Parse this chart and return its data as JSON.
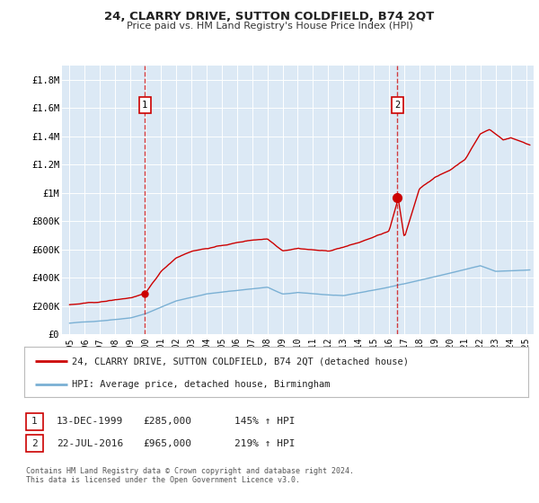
{
  "title": "24, CLARRY DRIVE, SUTTON COLDFIELD, B74 2QT",
  "subtitle": "Price paid vs. HM Land Registry's House Price Index (HPI)",
  "xlim": [
    1994.5,
    2025.5
  ],
  "ylim": [
    0,
    1900000
  ],
  "yticks": [
    0,
    200000,
    400000,
    600000,
    800000,
    1000000,
    1200000,
    1400000,
    1600000,
    1800000
  ],
  "ytick_labels": [
    "£0",
    "£200K",
    "£400K",
    "£600K",
    "£800K",
    "£1M",
    "£1.2M",
    "£1.4M",
    "£1.6M",
    "£1.8M"
  ],
  "xticks": [
    1995,
    1996,
    1997,
    1998,
    1999,
    2000,
    2001,
    2002,
    2003,
    2004,
    2005,
    2006,
    2007,
    2008,
    2009,
    2010,
    2011,
    2012,
    2013,
    2014,
    2015,
    2016,
    2017,
    2018,
    2019,
    2020,
    2021,
    2022,
    2023,
    2024,
    2025
  ],
  "bg_color": "#dce9f5",
  "outer_bg_color": "#ffffff",
  "red_line_color": "#cc0000",
  "blue_line_color": "#7ab0d4",
  "marker1_x": 1999.95,
  "marker1_y": 285000,
  "marker2_x": 2016.55,
  "marker2_y": 965000,
  "vline1_x": 1999.95,
  "vline2_x": 2016.55,
  "legend_line1": "24, CLARRY DRIVE, SUTTON COLDFIELD, B74 2QT (detached house)",
  "legend_line2": "HPI: Average price, detached house, Birmingham",
  "annotation1_label": "1",
  "annotation2_label": "2",
  "note1_num": "1",
  "note1_date": "13-DEC-1999",
  "note1_price": "£285,000",
  "note1_hpi": "145% ↑ HPI",
  "note2_num": "2",
  "note2_date": "22-JUL-2016",
  "note2_price": "£965,000",
  "note2_hpi": "219% ↑ HPI",
  "footer": "Contains HM Land Registry data © Crown copyright and database right 2024.\nThis data is licensed under the Open Government Licence v3.0."
}
